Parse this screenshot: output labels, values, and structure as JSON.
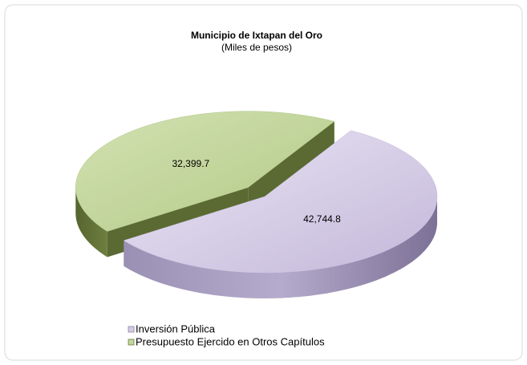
{
  "chart_data": {
    "type": "pie",
    "title": "Municipio de Ixtapan del Oro",
    "subtitle": "(Miles de pesos)",
    "categories": [
      "Inversión Pública",
      "Presupuesto Ejercido en Otros Capítulos"
    ],
    "values": [
      42744.8,
      32399.7
    ],
    "value_labels": [
      "42,744.8",
      "32,399.7"
    ],
    "colors": [
      "#d4cbe6",
      "#c3d69b"
    ],
    "legend": "bottom-left"
  }
}
